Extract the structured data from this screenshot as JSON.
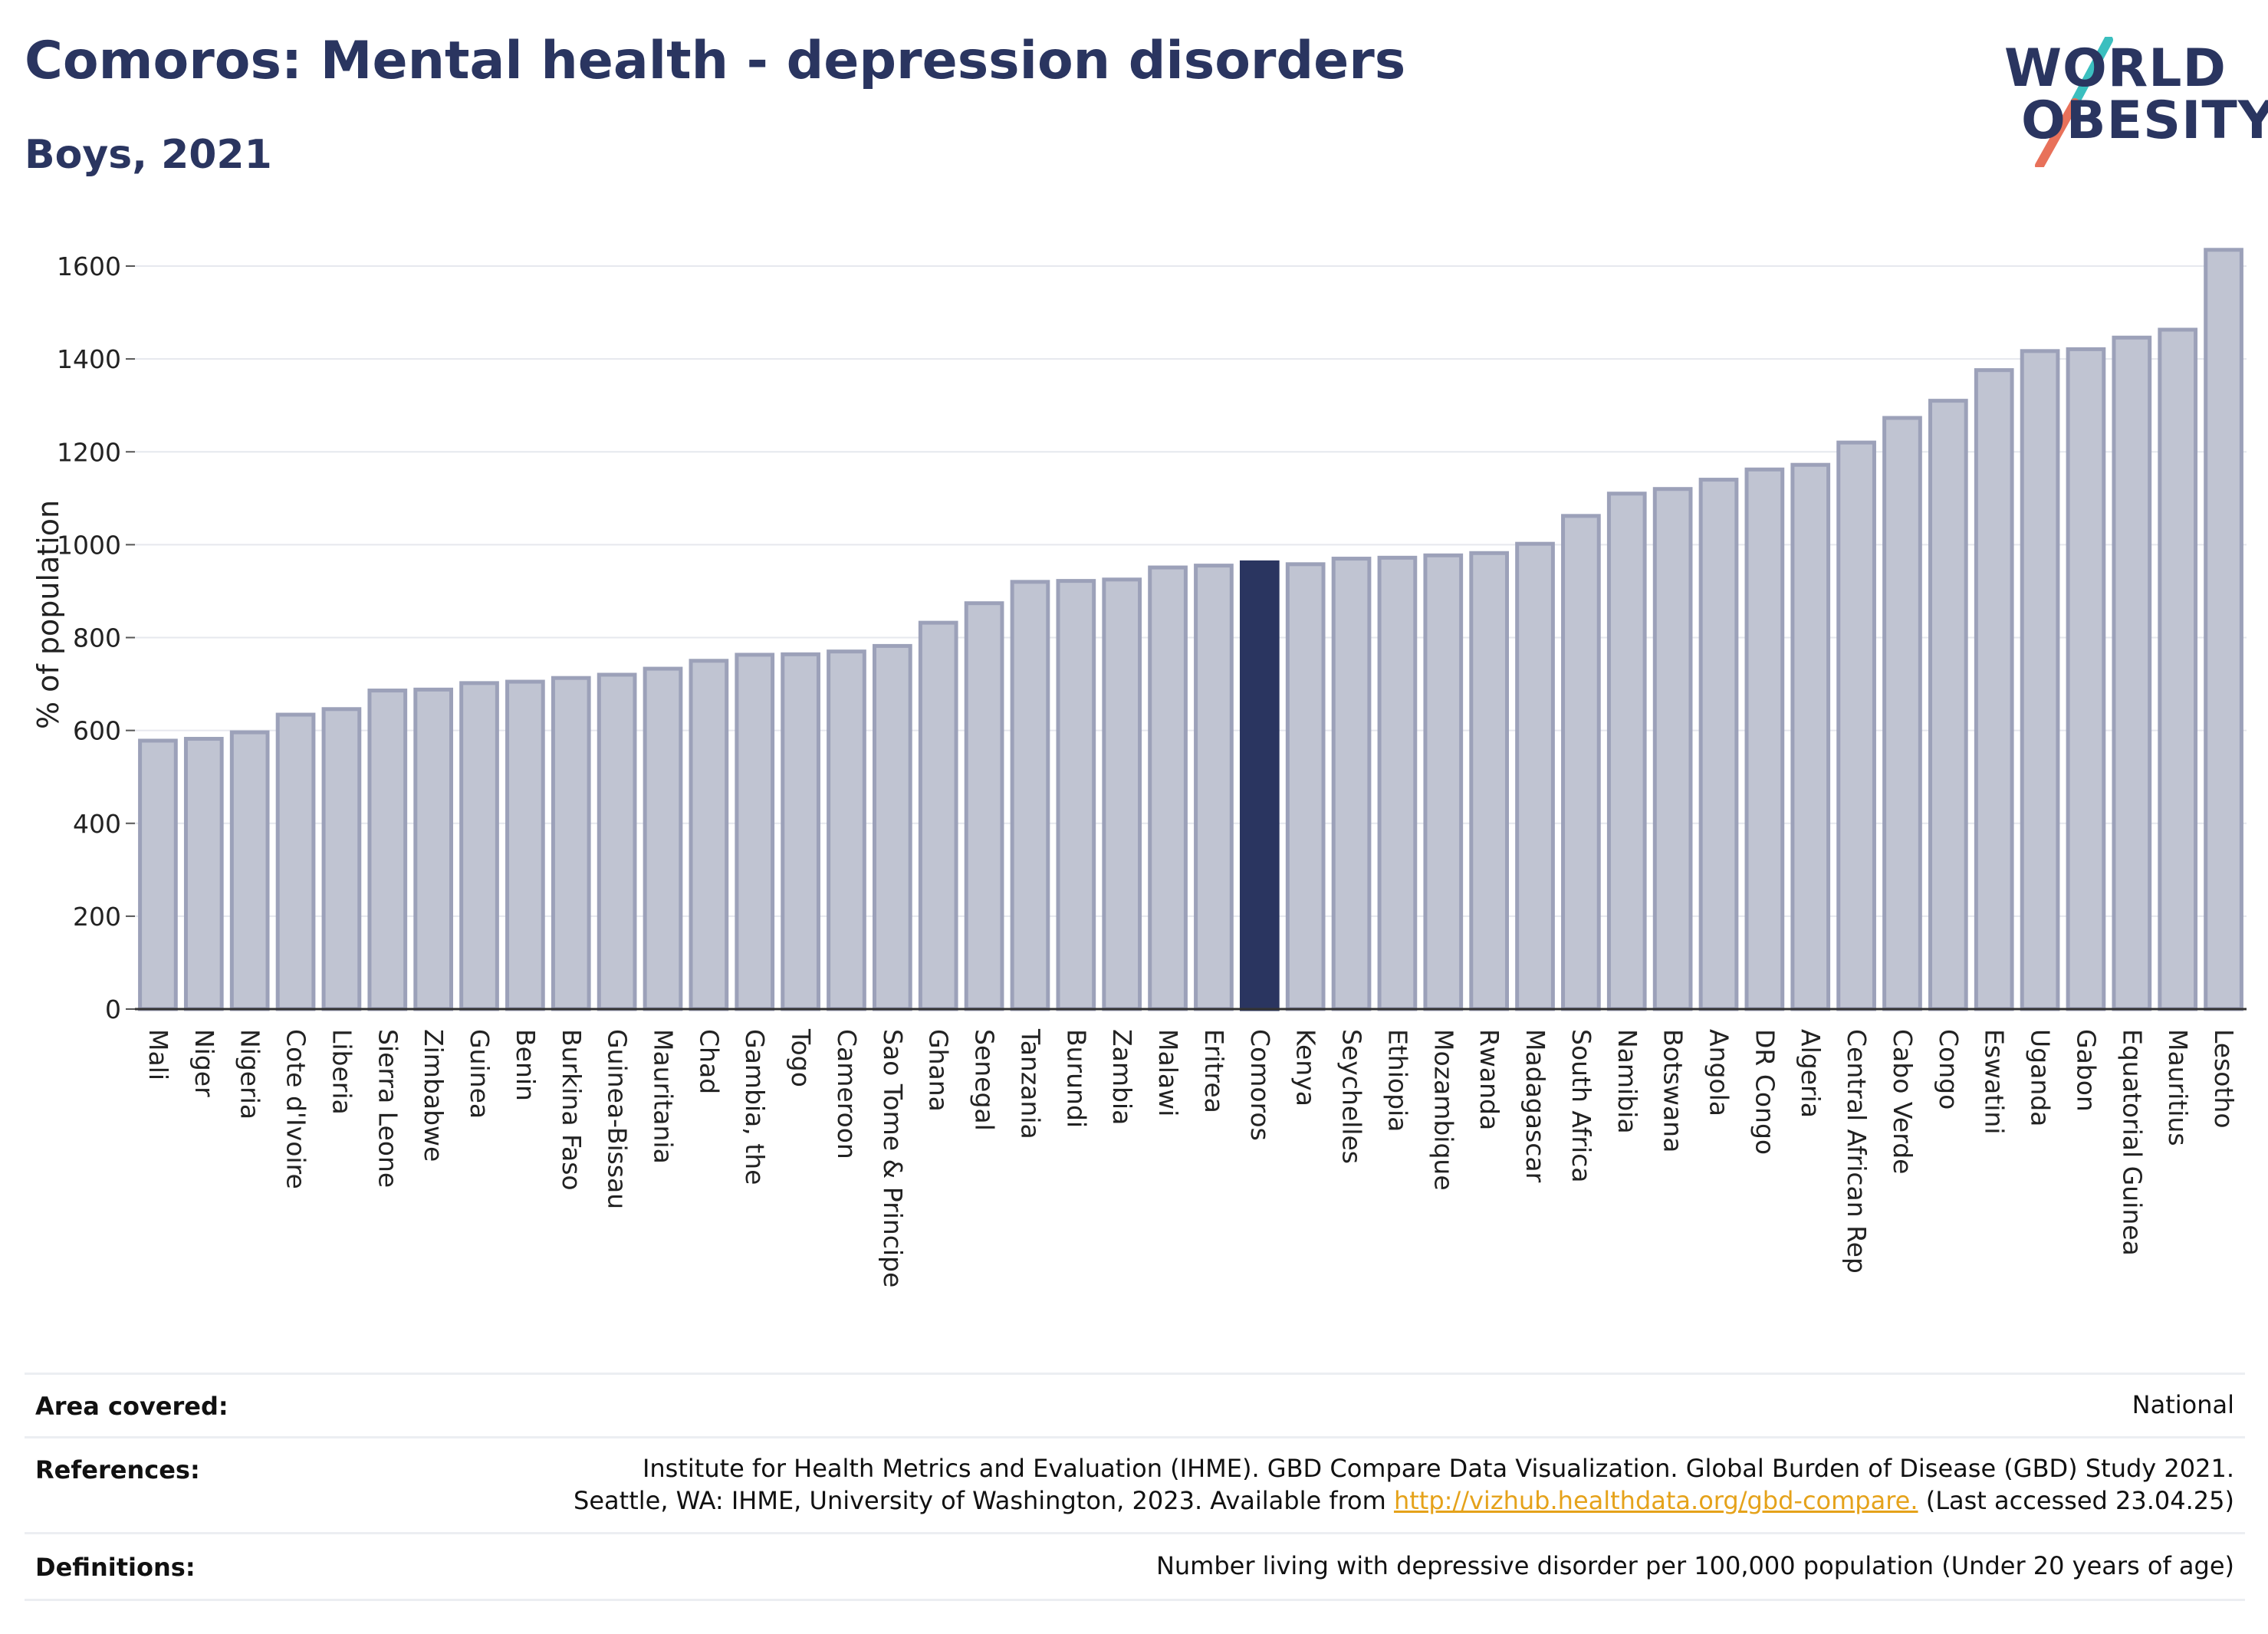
{
  "header": {
    "title": "Comoros: Mental health - depression disorders",
    "subtitle": "Boys, 2021"
  },
  "logo": {
    "line1": "WORLD",
    "line2": "OBESITY",
    "icon": "slash-logo-icon",
    "colors": {
      "text": "#2a3560",
      "slash_top": "#3bbfbf",
      "slash_bottom": "#e8715a"
    }
  },
  "chart_data": {
    "type": "bar",
    "ylabel": "% of population",
    "ylim": [
      0,
      1650
    ],
    "yticks": [
      0,
      200,
      400,
      600,
      800,
      1000,
      1200,
      1400,
      1600
    ],
    "grid": true,
    "highlight": "Comoros",
    "colors": {
      "bar": "#c0c4d2",
      "bar_edge": "#9ca1b9",
      "highlight": "#2a3560"
    },
    "categories": [
      "Mali",
      "Niger",
      "Nigeria",
      "Cote d'Ivoire",
      "Liberia",
      "Sierra Leone",
      "Zimbabwe",
      "Guinea",
      "Benin",
      "Burkina Faso",
      "Guinea-Bissau",
      "Mauritania",
      "Chad",
      "Gambia, the",
      "Togo",
      "Cameroon",
      "Sao Tome & Principe",
      "Ghana",
      "Senegal",
      "Tanzania",
      "Burundi",
      "Zambia",
      "Malawi",
      "Eritrea",
      "Comoros",
      "Kenya",
      "Seychelles",
      "Ethiopia",
      "Mozambique",
      "Rwanda",
      "Madagascar",
      "South Africa",
      "Namibia",
      "Botswana",
      "Angola",
      "DR Congo",
      "Algeria",
      "Central African Rep",
      "Cabo Verde",
      "Congo",
      "Eswatini",
      "Uganda",
      "Gabon",
      "Equatorial Guinea",
      "Mauritius",
      "Lesotho"
    ],
    "values": [
      578,
      582,
      596,
      634,
      646,
      686,
      688,
      702,
      705,
      713,
      720,
      733,
      750,
      763,
      764,
      770,
      782,
      832,
      874,
      920,
      922,
      925,
      951,
      955,
      962,
      958,
      970,
      972,
      977,
      982,
      1002,
      1062,
      1110,
      1120,
      1140,
      1162,
      1172,
      1220,
      1273,
      1310,
      1376,
      1417,
      1421,
      1446,
      1463,
      1635
    ]
  },
  "footer": {
    "area_label": "Area covered:",
    "area_value": "National",
    "references_label": "References:",
    "references_line1": "Institute for Health Metrics and Evaluation (IHME). GBD Compare Data Visualization. Global Burden of Disease (GBD) Study 2021.",
    "references_line2_pre": "Seattle, WA: IHME, University of Washington, 2023. Available from",
    "references_link": "http://vizhub.healthdata.org/gbd-compare.",
    "references_line2_post": "(Last accessed 23.04.25)",
    "definitions_label": "Definitions:",
    "definitions_value": "Number living with depressive disorder per 100,000 population (Under 20 years of age)"
  }
}
